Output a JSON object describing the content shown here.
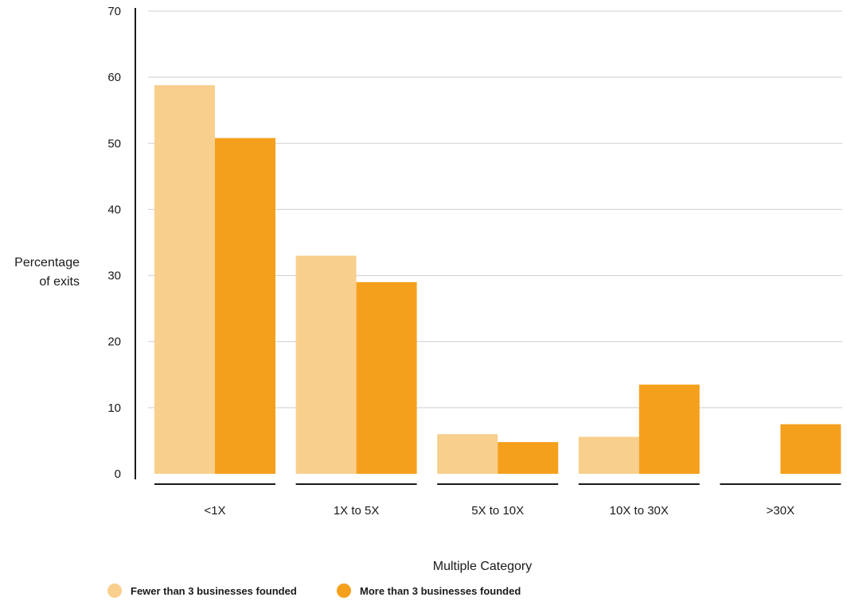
{
  "chart_data": {
    "type": "bar",
    "title": "",
    "xlabel": "Multiple Category",
    "ylabel": [
      "Percentage",
      "of exits"
    ],
    "categories": [
      "<1X",
      "1X to 5X",
      "5X to 10X",
      "10X to 30X",
      ">30X"
    ],
    "series": [
      {
        "name": "Fewer than 3 businesses founded",
        "color": "#F9CF8E",
        "values": [
          58.8,
          33.0,
          6.0,
          5.6,
          0
        ]
      },
      {
        "name": "More than 3 businesses founded",
        "color": "#F5A01C",
        "values": [
          50.8,
          29.0,
          4.8,
          13.5,
          7.5
        ]
      }
    ],
    "ylim": [
      0,
      70
    ],
    "yticks": [
      0,
      10,
      20,
      30,
      40,
      50,
      60,
      70
    ],
    "grid": true,
    "legend_position": "bottom-left"
  }
}
